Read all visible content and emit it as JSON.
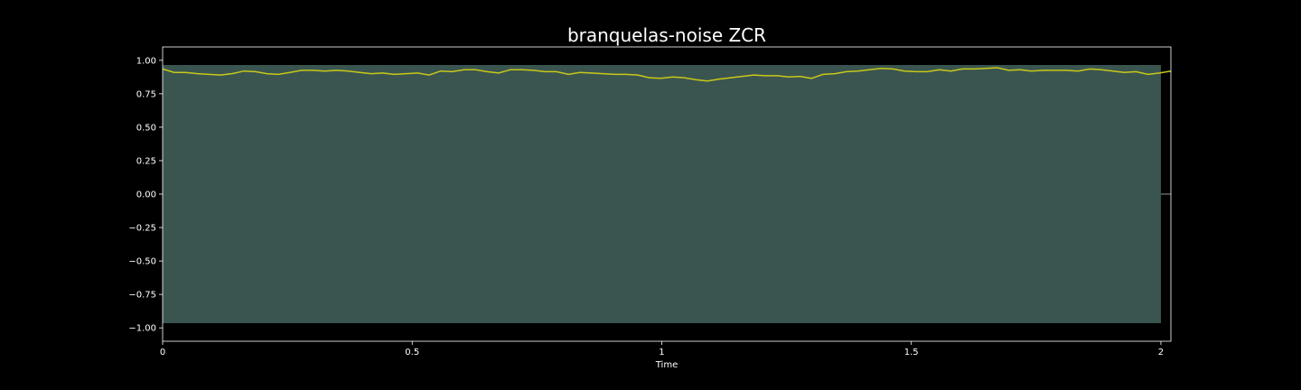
{
  "chart_data": {
    "type": "area",
    "title": "branquelas-noise ZCR",
    "xlabel": "Time",
    "ylabel": "",
    "xlim": [
      0,
      2.02
    ],
    "ylim": [
      -1.1,
      1.1
    ],
    "grid": false,
    "x_ticks": [
      {
        "value": 0,
        "label": "0"
      },
      {
        "value": 0.5,
        "label": "0.5"
      },
      {
        "value": 1,
        "label": "1"
      },
      {
        "value": 1.5,
        "label": "1.5"
      },
      {
        "value": 2,
        "label": "2"
      }
    ],
    "y_ticks": [
      {
        "value": 1.0,
        "label": "1.00"
      },
      {
        "value": 0.75,
        "label": "0.75"
      },
      {
        "value": 0.5,
        "label": "0.50"
      },
      {
        "value": 0.25,
        "label": "0.25"
      },
      {
        "value": 0.0,
        "label": "0.00"
      },
      {
        "value": -0.25,
        "label": "−0.25"
      },
      {
        "value": -0.5,
        "label": "−0.50"
      },
      {
        "value": -0.75,
        "label": "−0.75"
      },
      {
        "value": -1.0,
        "label": "−1.00"
      }
    ],
    "waveform": {
      "x_start": 0,
      "x_end": 2.0,
      "amplitude_upper": 0.965,
      "amplitude_lower": -0.965,
      "color": "#3a5550",
      "tail_line": {
        "x_start": 2.0,
        "x_end": 2.02,
        "y": 0.0,
        "color": "#8a9a96"
      }
    },
    "series": [
      {
        "color": "#c8c818",
        "x": [
          0,
          0.023,
          0.046,
          0.07,
          0.093,
          0.116,
          0.139,
          0.163,
          0.186,
          0.209,
          0.232,
          0.255,
          0.279,
          0.302,
          0.325,
          0.348,
          0.372,
          0.395,
          0.418,
          0.441,
          0.464,
          0.488,
          0.511,
          0.534,
          0.557,
          0.58,
          0.604,
          0.627,
          0.65,
          0.673,
          0.697,
          0.72,
          0.743,
          0.766,
          0.789,
          0.813,
          0.836,
          0.859,
          0.882,
          0.906,
          0.929,
          0.952,
          0.975,
          0.998,
          1.022,
          1.045,
          1.068,
          1.091,
          1.115,
          1.138,
          1.161,
          1.184,
          1.207,
          1.231,
          1.254,
          1.277,
          1.3,
          1.323,
          1.347,
          1.37,
          1.393,
          1.416,
          1.44,
          1.463,
          1.486,
          1.509,
          1.532,
          1.556,
          1.579,
          1.602,
          1.625,
          1.649,
          1.672,
          1.695,
          1.718,
          1.741,
          1.765,
          1.788,
          1.811,
          1.834,
          1.858,
          1.881,
          1.904,
          1.927,
          1.95,
          1.974,
          1.997,
          2.02
        ],
        "y": [
          0.935,
          0.91,
          0.91,
          0.9,
          0.895,
          0.89,
          0.9,
          0.92,
          0.915,
          0.9,
          0.895,
          0.91,
          0.925,
          0.925,
          0.92,
          0.925,
          0.92,
          0.91,
          0.9,
          0.905,
          0.895,
          0.9,
          0.905,
          0.89,
          0.92,
          0.915,
          0.93,
          0.93,
          0.915,
          0.905,
          0.93,
          0.93,
          0.925,
          0.915,
          0.915,
          0.895,
          0.91,
          0.905,
          0.9,
          0.895,
          0.895,
          0.89,
          0.87,
          0.865,
          0.875,
          0.87,
          0.855,
          0.845,
          0.86,
          0.87,
          0.88,
          0.89,
          0.885,
          0.885,
          0.875,
          0.88,
          0.865,
          0.895,
          0.9,
          0.915,
          0.92,
          0.93,
          0.94,
          0.935,
          0.92,
          0.915,
          0.915,
          0.93,
          0.92,
          0.935,
          0.935,
          0.94,
          0.945,
          0.925,
          0.93,
          0.92,
          0.925,
          0.925,
          0.925,
          0.92,
          0.935,
          0.93,
          0.92,
          0.91,
          0.915,
          0.895,
          0.905,
          0.92
        ]
      }
    ]
  }
}
